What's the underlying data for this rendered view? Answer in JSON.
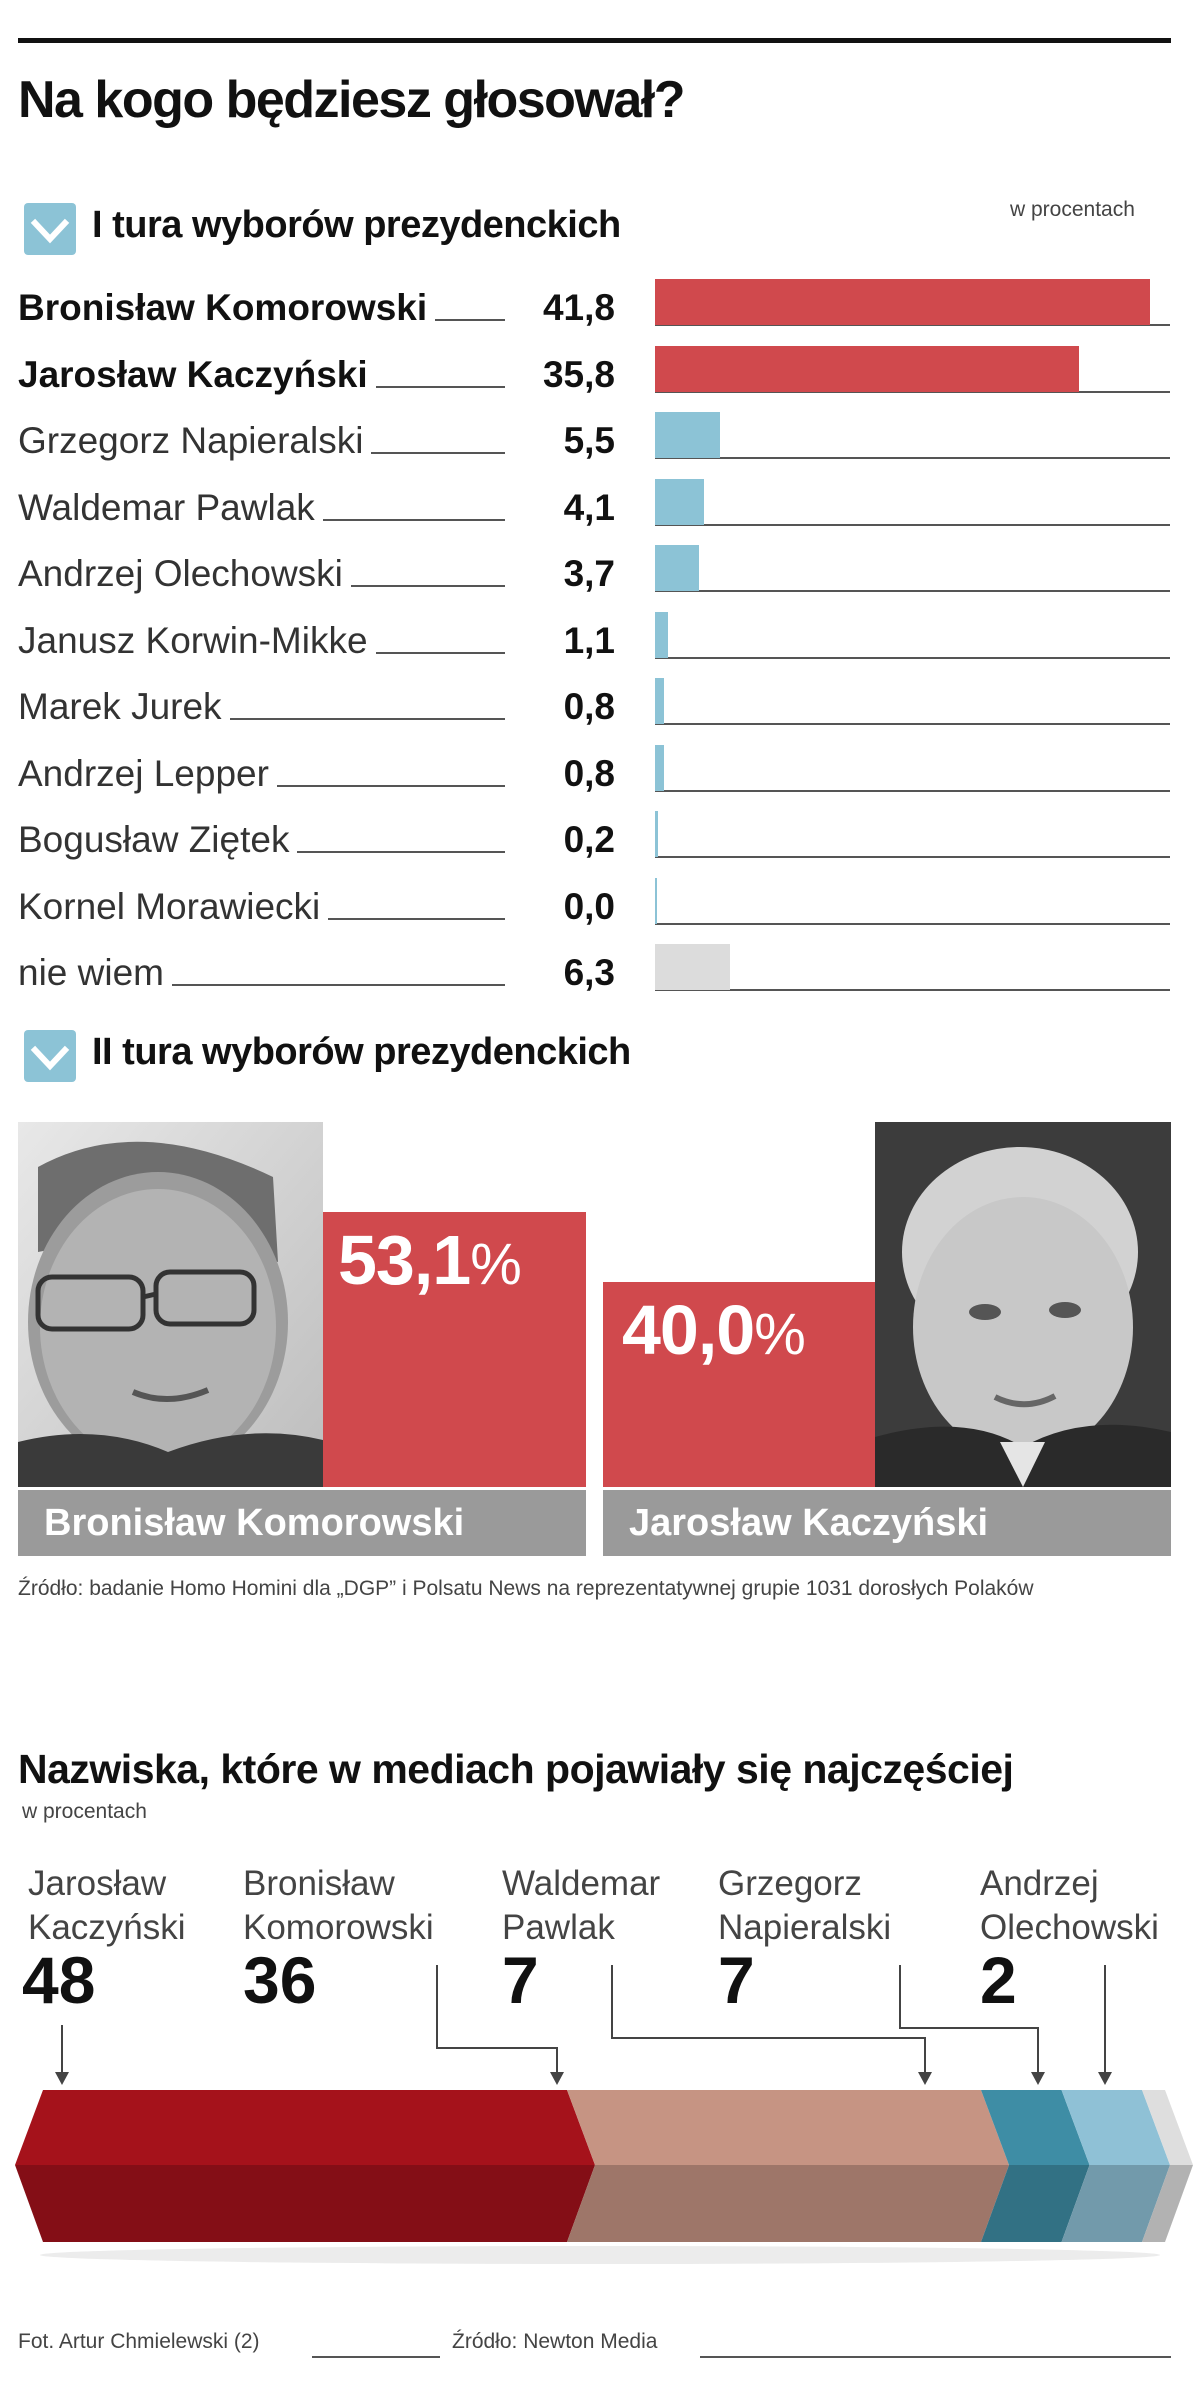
{
  "title": "Na kogo będziesz głosował?",
  "round1": {
    "heading": "I tura wyborów prezydenckich",
    "unit": "w procentach"
  },
  "round2": {
    "heading": "II tura wyborów prezydenckich",
    "candidates": [
      {
        "name": "Bronisław Komorowski",
        "value_label": "53,1",
        "pct_symbol": "%"
      },
      {
        "name": "Jarosław Kaczyński",
        "value_label": "40,0",
        "pct_symbol": "%"
      }
    ]
  },
  "survey_source": "Źródło: badanie Homo Homini dla „DGP” i Polsatu News na reprezentatywnej grupie 1031 dorosłych Polaków",
  "media": {
    "title": "Nazwiska, które w mediach pojawiały się najczęściej",
    "unit": "w procentach",
    "items": [
      {
        "line1": "Jarosław",
        "line2": "Kaczyński",
        "value_label": "48"
      },
      {
        "line1": "Bronisław",
        "line2": "Komorowski",
        "value_label": "36"
      },
      {
        "line1": "Waldemar",
        "line2": "Pawlak",
        "value_label": "7"
      },
      {
        "line1": "Grzegorz",
        "line2": "Napieralski",
        "value_label": "7"
      },
      {
        "line1": "Andrzej",
        "line2": "Olechowski",
        "value_label": "2"
      }
    ]
  },
  "footer": {
    "photo_credit": "Fot. Artur Chmielewski (2)",
    "source": "Źródło: Newton Media"
  },
  "colors": {
    "red": "#d0494d",
    "blue": "#8cc3d6",
    "grey": "#dcdcdc",
    "dark_red": "#a5121b",
    "pink": "#c69483",
    "teal": "#3e8da5",
    "light_blue": "#8fc1d6",
    "light_grey": "#dedede"
  },
  "chart_data": [
    {
      "type": "bar",
      "title": "I tura wyborów prezydenckich",
      "categories": [
        "Bronisław Komorowski",
        "Jarosław Kaczyński",
        "Grzegorz Napieralski",
        "Waldemar Pawlak",
        "Andrzej Olechowski",
        "Janusz Korwin-Mikke",
        "Marek Jurek",
        "Andrzej Lepper",
        "Bogusław Ziętek",
        "Kornel Morawiecki",
        "nie wiem"
      ],
      "values": [
        41.8,
        35.8,
        5.5,
        4.1,
        3.7,
        1.1,
        0.8,
        0.8,
        0.2,
        0.0,
        6.3
      ],
      "value_labels": [
        "41,8",
        "35,8",
        "5,5",
        "4,1",
        "3,7",
        "1,1",
        "0,8",
        "0,8",
        "0,2",
        "0,0",
        "6,3"
      ],
      "bold": [
        true,
        true,
        false,
        false,
        false,
        false,
        false,
        false,
        false,
        false,
        false
      ],
      "colors": [
        "#d0494d",
        "#d0494d",
        "#8cc3d6",
        "#8cc3d6",
        "#8cc3d6",
        "#8cc3d6",
        "#8cc3d6",
        "#8cc3d6",
        "#8cc3d6",
        "#8cc3d6",
        "#dcdcdc"
      ],
      "xlim": [
        0,
        43.5
      ]
    },
    {
      "type": "bar",
      "title": "II tura wyborów prezydenckich",
      "categories": [
        "Bronisław Komorowski",
        "Jarosław Kaczyński"
      ],
      "values": [
        53.1,
        40.0
      ]
    },
    {
      "type": "bar",
      "title": "Nazwiska, które w mediach pojawiały się najczęściej",
      "categories": [
        "Jarosław Kaczyński",
        "Bronisław Komorowski",
        "Waldemar Pawlak",
        "Grzegorz Napieralski",
        "Andrzej Olechowski"
      ],
      "values": [
        48,
        36,
        7,
        7,
        2
      ],
      "colors": [
        "#a5121b",
        "#c69483",
        "#3e8da5",
        "#8fc1d6",
        "#dedede"
      ]
    }
  ]
}
